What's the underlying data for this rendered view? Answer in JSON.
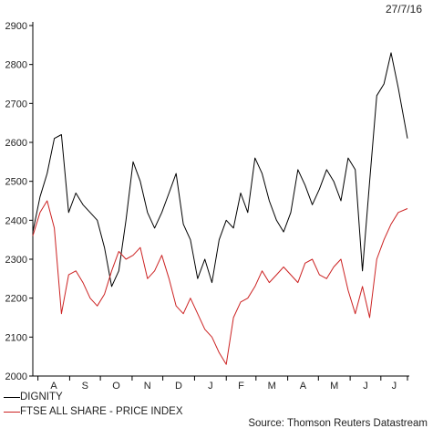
{
  "date": "27/7/16",
  "source": "Source: Thomson Reuters Datastream",
  "chart_data": {
    "type": "line",
    "title": "",
    "xlabel": "",
    "ylabel": "",
    "ylim": [
      2000,
      2900
    ],
    "y_ticks": [
      2000,
      2100,
      2200,
      2300,
      2400,
      2500,
      2600,
      2700,
      2800,
      2900
    ],
    "x_tick_labels": [
      "A",
      "S",
      "O",
      "N",
      "D",
      "J",
      "F",
      "M",
      "A",
      "M",
      "J",
      "J"
    ],
    "grid": false,
    "legend_position": "bottom-left",
    "x": [
      "2015-07-27",
      "2015-08-03",
      "2015-08-10",
      "2015-08-17",
      "2015-08-24",
      "2015-08-31",
      "2015-09-07",
      "2015-09-14",
      "2015-09-21",
      "2015-09-28",
      "2015-10-05",
      "2015-10-12",
      "2015-10-19",
      "2015-10-26",
      "2015-11-02",
      "2015-11-09",
      "2015-11-16",
      "2015-11-23",
      "2015-11-30",
      "2015-12-07",
      "2015-12-14",
      "2015-12-21",
      "2015-12-28",
      "2016-01-04",
      "2016-01-11",
      "2016-01-18",
      "2016-01-25",
      "2016-02-01",
      "2016-02-08",
      "2016-02-15",
      "2016-02-22",
      "2016-02-29",
      "2016-03-07",
      "2016-03-14",
      "2016-03-21",
      "2016-03-28",
      "2016-04-04",
      "2016-04-11",
      "2016-04-18",
      "2016-04-25",
      "2016-05-02",
      "2016-05-09",
      "2016-05-16",
      "2016-05-23",
      "2016-05-30",
      "2016-06-06",
      "2016-06-13",
      "2016-06-20",
      "2016-06-27",
      "2016-07-04",
      "2016-07-11",
      "2016-07-18",
      "2016-07-27"
    ],
    "series": [
      {
        "name": "DIGNITY",
        "color": "#000000",
        "values": [
          2370,
          2460,
          2520,
          2610,
          2620,
          2420,
          2470,
          2440,
          2420,
          2400,
          2330,
          2230,
          2270,
          2400,
          2550,
          2500,
          2420,
          2380,
          2420,
          2470,
          2520,
          2390,
          2350,
          2250,
          2300,
          2240,
          2350,
          2400,
          2380,
          2470,
          2420,
          2560,
          2520,
          2450,
          2400,
          2370,
          2420,
          2530,
          2490,
          2440,
          2480,
          2530,
          2500,
          2450,
          2560,
          2530,
          2270,
          2500,
          2720,
          2750,
          2830,
          2740,
          2610
        ]
      },
      {
        "name": "FTSE ALL SHARE - PRICE INDEX",
        "color": "#cc2222",
        "values": [
          2360,
          2420,
          2450,
          2380,
          2160,
          2260,
          2270,
          2240,
          2200,
          2180,
          2210,
          2270,
          2320,
          2300,
          2310,
          2330,
          2250,
          2270,
          2310,
          2250,
          2180,
          2160,
          2200,
          2160,
          2120,
          2100,
          2060,
          2030,
          2150,
          2190,
          2200,
          2230,
          2270,
          2240,
          2260,
          2280,
          2260,
          2240,
          2290,
          2300,
          2260,
          2250,
          2280,
          2300,
          2220,
          2160,
          2230,
          2150,
          2300,
          2350,
          2390,
          2420,
          2430
        ]
      }
    ]
  }
}
